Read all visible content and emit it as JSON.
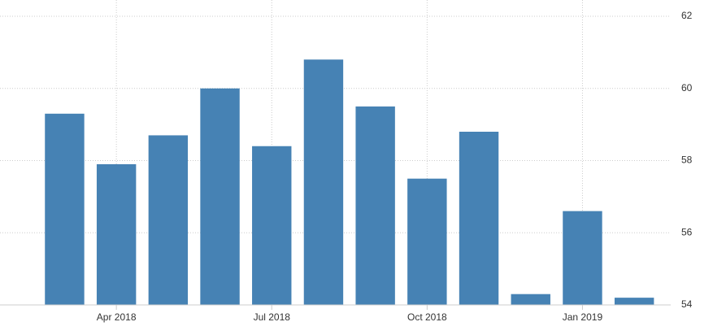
{
  "chart_data": {
    "type": "bar",
    "categories": [
      null,
      "Apr 2018",
      null,
      null,
      "Jul 2018",
      null,
      null,
      "Oct 2018",
      null,
      null,
      "Jan 2019",
      null
    ],
    "values": [
      59.3,
      57.9,
      58.7,
      60.0,
      58.4,
      60.8,
      59.5,
      57.5,
      58.8,
      54.3,
      56.6,
      54.2
    ],
    "color": "#4682b4",
    "ylim": [
      54,
      62
    ],
    "yticks": [
      54,
      56,
      58,
      60,
      62
    ],
    "grid": true
  }
}
